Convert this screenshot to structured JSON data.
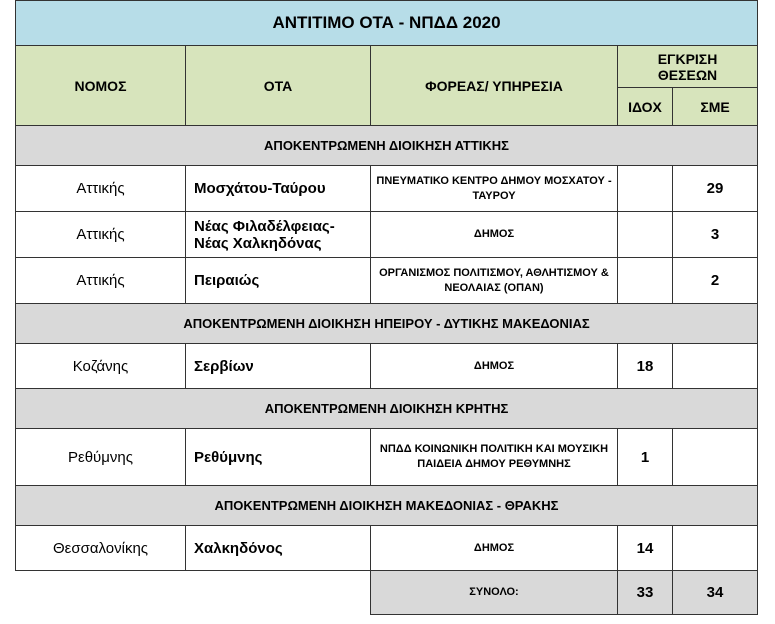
{
  "title": "ΑΝΤΙΤΙΜΟ  ΟΤΑ - ΝΠΔΔ 2020",
  "headers": {
    "nomos": "ΝΟΜΟΣ",
    "ota": "ΟΤΑ",
    "foreas": "ΦΟΡΕΑΣ/ ΥΠΗΡΕΣΙΑ",
    "egkrisi": "ΕΓΚΡΙΣΗ ΘΕΣΕΩΝ",
    "idox": "ΙΔΟΧ",
    "sme": "ΣΜΕ"
  },
  "sections": [
    {
      "title": "ΑΠΟΚΕΝΤΡΩΜΕΝΗ ΔΙΟΙΚΗΣΗ ΑΤΤΙΚΗΣ",
      "rows": [
        {
          "nomos": "Αττικής",
          "ota": "Μοσχάτου-Ταύρου",
          "foreas": "ΠΝΕΥΜΑΤΙΚΟ ΚΕΝΤΡΟ ΔΗΜΟΥ ΜΟΣΧΑΤΟΥ - ΤΑΥΡΟΥ",
          "idox": "",
          "sme": "29"
        },
        {
          "nomos": "Αττικής",
          "ota": "Νέας Φιλαδέλφειας- Νέας Χαλκηδόνας",
          "foreas": "ΔΗΜΟΣ",
          "idox": "",
          "sme": "3"
        },
        {
          "nomos": "Αττικής",
          "ota": "Πειραιώς",
          "foreas": "ΟΡΓΑΝΙΣΜΟΣ ΠΟΛΙΤΙΣΜΟΥ, ΑΘΛΗΤΙΣΜΟΥ & ΝΕΟΛΑΙΑΣ (ΟΠΑΝ)",
          "idox": "",
          "sme": "2"
        }
      ]
    },
    {
      "title": "ΑΠΟΚΕΝΤΡΩΜΕΝΗ ΔΙΟΙΚΗΣΗ ΗΠΕΙΡΟΥ - ΔΥΤΙΚΗΣ ΜΑΚΕΔΟΝΙΑΣ",
      "rows": [
        {
          "nomos": "Κοζάνης",
          "ota": "Σερβίων",
          "foreas": "ΔΗΜΟΣ",
          "idox": "18",
          "sme": ""
        }
      ]
    },
    {
      "title": "ΑΠΟΚΕΝΤΡΩΜΕΝΗ ΔΙΟΙΚΗΣΗ ΚΡΗΤΗΣ",
      "rows": [
        {
          "nomos": "Ρεθύμνης",
          "ota": "Ρεθύμνης",
          "foreas": "ΝΠΔΔ ΚΟΙΝΩΝΙΚΗ ΠΟΛΙΤΙΚΗ ΚΑΙ ΜΟΥΣΙΚΗ ΠΑΙΔΕΙΑ ΔΗΜΟΥ ΡΕΘΥΜΝΗΣ",
          "idox": "1",
          "sme": ""
        }
      ]
    },
    {
      "title": "ΑΠΟΚΕΝΤΡΩΜΕΝΗ ΔΙΟΙΚΗΣΗ ΜΑΚΕΔΟΝΙΑΣ - ΘΡΑΚΗΣ",
      "rows": [
        {
          "nomos": "Θεσσαλονίκης",
          "ota": "Χαλκηδόνος",
          "foreas": "ΔΗΜΟΣ",
          "idox": "14",
          "sme": ""
        }
      ]
    }
  ],
  "total": {
    "label": "ΣΥΝΟΛΟ:",
    "idox": "33",
    "sme": "34"
  }
}
